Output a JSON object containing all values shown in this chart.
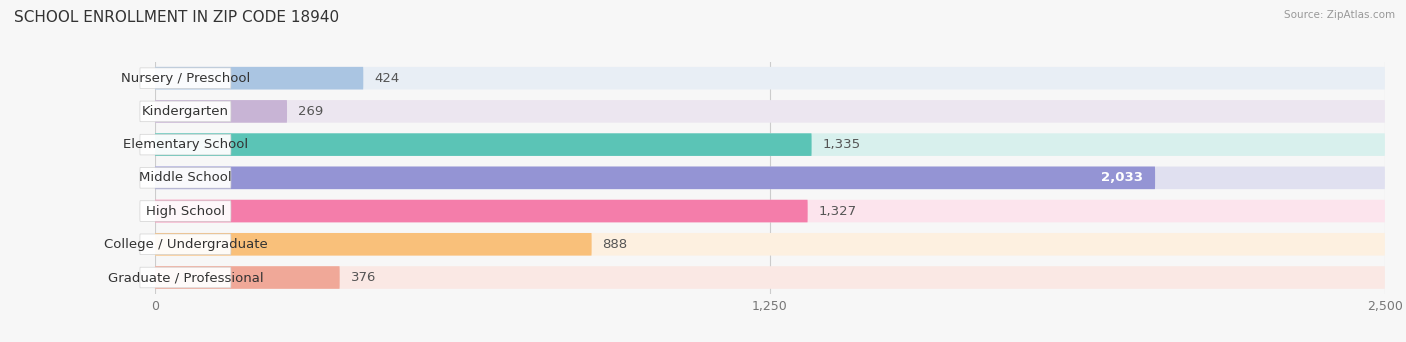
{
  "title": "SCHOOL ENROLLMENT IN ZIP CODE 18940",
  "source": "Source: ZipAtlas.com",
  "categories": [
    "Nursery / Preschool",
    "Kindergarten",
    "Elementary School",
    "Middle School",
    "High School",
    "College / Undergraduate",
    "Graduate / Professional"
  ],
  "values": [
    424,
    269,
    1335,
    2033,
    1327,
    888,
    376
  ],
  "bar_colors": [
    "#aac5e2",
    "#c8b4d5",
    "#5bc4b6",
    "#9494d4",
    "#f47daa",
    "#f9c07a",
    "#f0a898"
  ],
  "row_bg_colors": [
    "#e8eef5",
    "#ece6f0",
    "#d8f0ed",
    "#e0e0f0",
    "#fce4ed",
    "#fdf0e0",
    "#fae8e4"
  ],
  "xlim": [
    0,
    2500
  ],
  "xticks": [
    0,
    1250,
    2500
  ],
  "background_color": "#f7f7f7",
  "title_fontsize": 11,
  "label_fontsize": 9.5,
  "value_fontsize": 9.5,
  "value_inside_threshold": 1950
}
